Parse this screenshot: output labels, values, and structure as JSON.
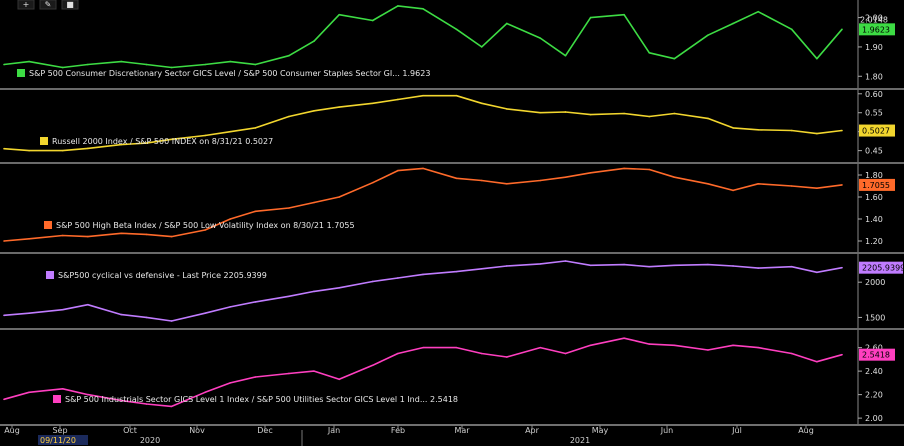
{
  "toolbar": {
    "icons": [
      "plus-icon",
      "pencil-icon",
      "square-icon"
    ]
  },
  "x_axis": {
    "months": [
      "Aug",
      "Sep",
      "Oct",
      "Nov",
      "Dec",
      "Jan",
      "Feb",
      "Mar",
      "Apr",
      "May",
      "Jun",
      "Jul",
      "Aug"
    ],
    "highlight_date": "09/11/20",
    "years": [
      "2020",
      "2021"
    ]
  },
  "chart_data": [
    {
      "type": "line",
      "legend": "S&P 500 Consumer Discretionary Sector GICS Level / S&P 500 Consumer Staples Sector GI... 1.9623",
      "color": "#3ddc44",
      "ylim": [
        1.76,
        2.06
      ],
      "yticks": [
        1.8,
        1.9,
        2.0
      ],
      "ytick_labels": [
        "1.80",
        "1.90",
        "2.00"
      ],
      "last_badge": "1.9623",
      "extra_badge": "2.0148",
      "x": [
        0,
        3,
        7,
        10,
        14,
        17,
        20,
        24,
        27,
        30,
        34,
        37,
        40,
        44,
        47,
        50,
        54,
        57,
        60,
        64,
        67,
        70,
        74,
        77,
        80,
        84,
        87,
        90,
        94,
        97,
        100
      ],
      "y": [
        1.84,
        1.85,
        1.83,
        1.84,
        1.85,
        1.84,
        1.83,
        1.84,
        1.85,
        1.84,
        1.87,
        1.92,
        2.01,
        1.99,
        2.04,
        2.03,
        1.96,
        1.9,
        1.98,
        1.93,
        1.87,
        2.0,
        2.01,
        1.88,
        1.86,
        1.94,
        1.98,
        2.02,
        1.96,
        1.86,
        1.96
      ]
    },
    {
      "type": "line",
      "legend": "Russell 2000 Index / S&P 500 INDEX on 8/31/21 0.5027",
      "color": "#f2d62e",
      "ylim": [
        0.42,
        0.61
      ],
      "yticks": [
        0.45,
        0.5,
        0.55,
        0.6
      ],
      "ytick_labels": [
        "0.45",
        "0.50",
        "0.55",
        "0.60"
      ],
      "last_badge": "0.5027",
      "x": [
        0,
        3,
        7,
        10,
        14,
        17,
        20,
        24,
        27,
        30,
        34,
        37,
        40,
        44,
        47,
        50,
        54,
        57,
        60,
        64,
        67,
        70,
        74,
        77,
        80,
        84,
        87,
        90,
        94,
        97,
        100
      ],
      "y": [
        0.455,
        0.45,
        0.45,
        0.456,
        0.466,
        0.47,
        0.48,
        0.49,
        0.5,
        0.51,
        0.54,
        0.555,
        0.565,
        0.575,
        0.585,
        0.595,
        0.595,
        0.575,
        0.56,
        0.55,
        0.552,
        0.545,
        0.548,
        0.54,
        0.548,
        0.535,
        0.51,
        0.505,
        0.503,
        0.495,
        0.503
      ]
    },
    {
      "type": "line",
      "legend": "S&P 500 High Beta Index / S&P 500 Low Volatility Index on 8/30/21 1.7055",
      "color": "#ff6a2a",
      "ylim": [
        1.1,
        1.9
      ],
      "yticks": [
        1.2,
        1.4,
        1.6,
        1.8
      ],
      "ytick_labels": [
        "1.20",
        "1.40",
        "1.60",
        "1.80"
      ],
      "last_badge": "1.7055",
      "x": [
        0,
        3,
        7,
        10,
        14,
        17,
        20,
        24,
        27,
        30,
        34,
        37,
        40,
        44,
        47,
        50,
        54,
        57,
        60,
        64,
        67,
        70,
        74,
        77,
        80,
        84,
        87,
        90,
        94,
        97,
        100
      ],
      "y": [
        1.2,
        1.22,
        1.25,
        1.24,
        1.27,
        1.26,
        1.24,
        1.3,
        1.4,
        1.47,
        1.5,
        1.55,
        1.6,
        1.73,
        1.84,
        1.86,
        1.77,
        1.75,
        1.72,
        1.75,
        1.78,
        1.82,
        1.86,
        1.85,
        1.78,
        1.72,
        1.66,
        1.72,
        1.7,
        1.68,
        1.71
      ]
    },
    {
      "type": "line",
      "legend": "S&P500 cyclical vs defensive - Last Price 2205.9399",
      "color": "#c07cff",
      "ylim": [
        1350,
        2400
      ],
      "yticks": [
        1500,
        2000
      ],
      "ytick_labels": [
        "1500",
        "2000"
      ],
      "last_badge": "2205.9399",
      "x": [
        0,
        3,
        7,
        10,
        14,
        17,
        20,
        24,
        27,
        30,
        34,
        37,
        40,
        44,
        47,
        50,
        54,
        57,
        60,
        64,
        67,
        70,
        74,
        77,
        80,
        84,
        87,
        90,
        94,
        97,
        100
      ],
      "y": [
        1530,
        1560,
        1610,
        1680,
        1540,
        1500,
        1450,
        1560,
        1650,
        1720,
        1800,
        1870,
        1920,
        2010,
        2060,
        2110,
        2150,
        2190,
        2230,
        2260,
        2300,
        2240,
        2250,
        2220,
        2240,
        2250,
        2230,
        2200,
        2220,
        2140,
        2206
      ]
    },
    {
      "type": "line",
      "legend": "S&P 500 Industrials Sector GICS Level 1 Index / S&P 500 Utilities Sector GICS Level 1 Ind... 2.5418",
      "color": "#ff3fc0",
      "ylim": [
        1.95,
        2.75
      ],
      "yticks": [
        2.0,
        2.2,
        2.4,
        2.6
      ],
      "ytick_labels": [
        "2.00",
        "2.20",
        "2.40",
        "2.60"
      ],
      "last_badge": "2.5418",
      "x": [
        0,
        3,
        7,
        10,
        14,
        17,
        20,
        24,
        27,
        30,
        34,
        37,
        40,
        44,
        47,
        50,
        54,
        57,
        60,
        64,
        67,
        70,
        74,
        77,
        80,
        84,
        87,
        90,
        94,
        97,
        100
      ],
      "y": [
        2.16,
        2.22,
        2.25,
        2.2,
        2.15,
        2.12,
        2.1,
        2.22,
        2.3,
        2.35,
        2.38,
        2.4,
        2.33,
        2.45,
        2.55,
        2.6,
        2.6,
        2.55,
        2.52,
        2.6,
        2.55,
        2.62,
        2.68,
        2.63,
        2.62,
        2.58,
        2.62,
        2.6,
        2.55,
        2.48,
        2.54
      ]
    }
  ]
}
